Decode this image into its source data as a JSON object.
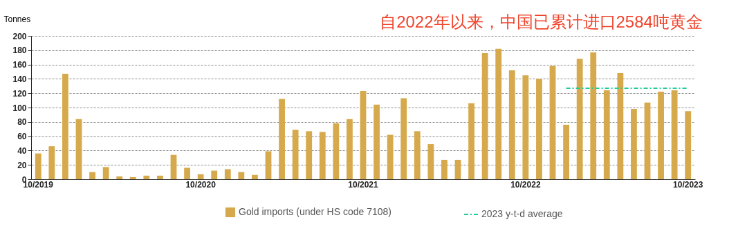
{
  "chart_data": {
    "type": "bar",
    "title": "自2022年以来，中国已累计进口2584吨黄金",
    "ylabel": "Tonnes",
    "categories": [
      "10/2019",
      null,
      null,
      null,
      null,
      null,
      null,
      null,
      null,
      null,
      null,
      null,
      "10/2020",
      null,
      null,
      null,
      null,
      null,
      null,
      null,
      null,
      null,
      null,
      null,
      "10/2021",
      null,
      null,
      null,
      null,
      null,
      null,
      null,
      null,
      null,
      null,
      null,
      "10/2022",
      null,
      null,
      null,
      null,
      null,
      null,
      null,
      null,
      null,
      null,
      null,
      "10/2023"
    ],
    "series": [
      {
        "name": "Gold imports (under HS code 7108)",
        "color": "#d6aa4c",
        "values": [
          36,
          46,
          147,
          84,
          10,
          17,
          4,
          3,
          5,
          5,
          34,
          16,
          7,
          12,
          14,
          10,
          6,
          39,
          112,
          69,
          67,
          66,
          78,
          84,
          123,
          104,
          62,
          113,
          67,
          49,
          27,
          27,
          106,
          176,
          182,
          152,
          145,
          140,
          158,
          76,
          168,
          177,
          124,
          148,
          98,
          107,
          122,
          124,
          95
        ]
      },
      {
        "name": "2023 y-t-d average",
        "type": "line",
        "line_style": "dashed",
        "color": "#22cc99",
        "values": [
          null,
          null,
          null,
          null,
          null,
          null,
          null,
          null,
          null,
          null,
          null,
          null,
          null,
          null,
          null,
          null,
          null,
          null,
          null,
          null,
          null,
          null,
          null,
          null,
          null,
          null,
          null,
          null,
          null,
          null,
          null,
          null,
          null,
          null,
          null,
          null,
          null,
          null,
          null,
          127,
          127,
          127,
          127,
          127,
          127,
          127,
          127,
          127,
          127
        ]
      }
    ],
    "ylim": [
      0,
      200
    ],
    "yticks": [
      0,
      20,
      40,
      60,
      80,
      100,
      120,
      140,
      160,
      180,
      200
    ],
    "grid": "y",
    "legend": "bottom"
  }
}
